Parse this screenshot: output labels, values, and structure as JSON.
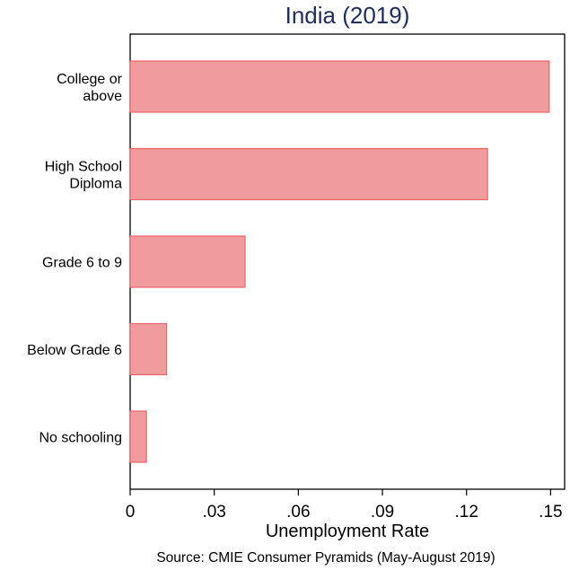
{
  "chart_data": {
    "type": "bar",
    "orientation": "horizontal",
    "title": "India (2019)",
    "categories": [
      "College or above",
      "High School Diploma",
      "Grade 6 to 9",
      "Below Grade 6",
      "No schooling"
    ],
    "category_label_lines": [
      [
        "College or",
        "above"
      ],
      [
        "High School",
        "Diploma"
      ],
      [
        "Grade 6 to 9"
      ],
      [
        "Below Grade 6"
      ],
      [
        "No schooling"
      ]
    ],
    "values": [
      0.1495,
      0.1275,
      0.041,
      0.013,
      0.0058
    ],
    "xlabel": "Unemployment Rate",
    "ylabel": "",
    "xlim": [
      0,
      0.155
    ],
    "xticks": [
      0,
      0.03,
      0.06,
      0.09,
      0.12,
      0.15
    ],
    "xtick_labels": [
      "0",
      ".03",
      ".06",
      ".09",
      ".12",
      ".15"
    ],
    "grid": false,
    "legend": "none",
    "note": "Source: CMIE Consumer Pyramids (May-August 2019)",
    "bar_fill": "#f19c9c",
    "bar_stroke": "#e8646c",
    "title_color": "#1f2d5a"
  }
}
